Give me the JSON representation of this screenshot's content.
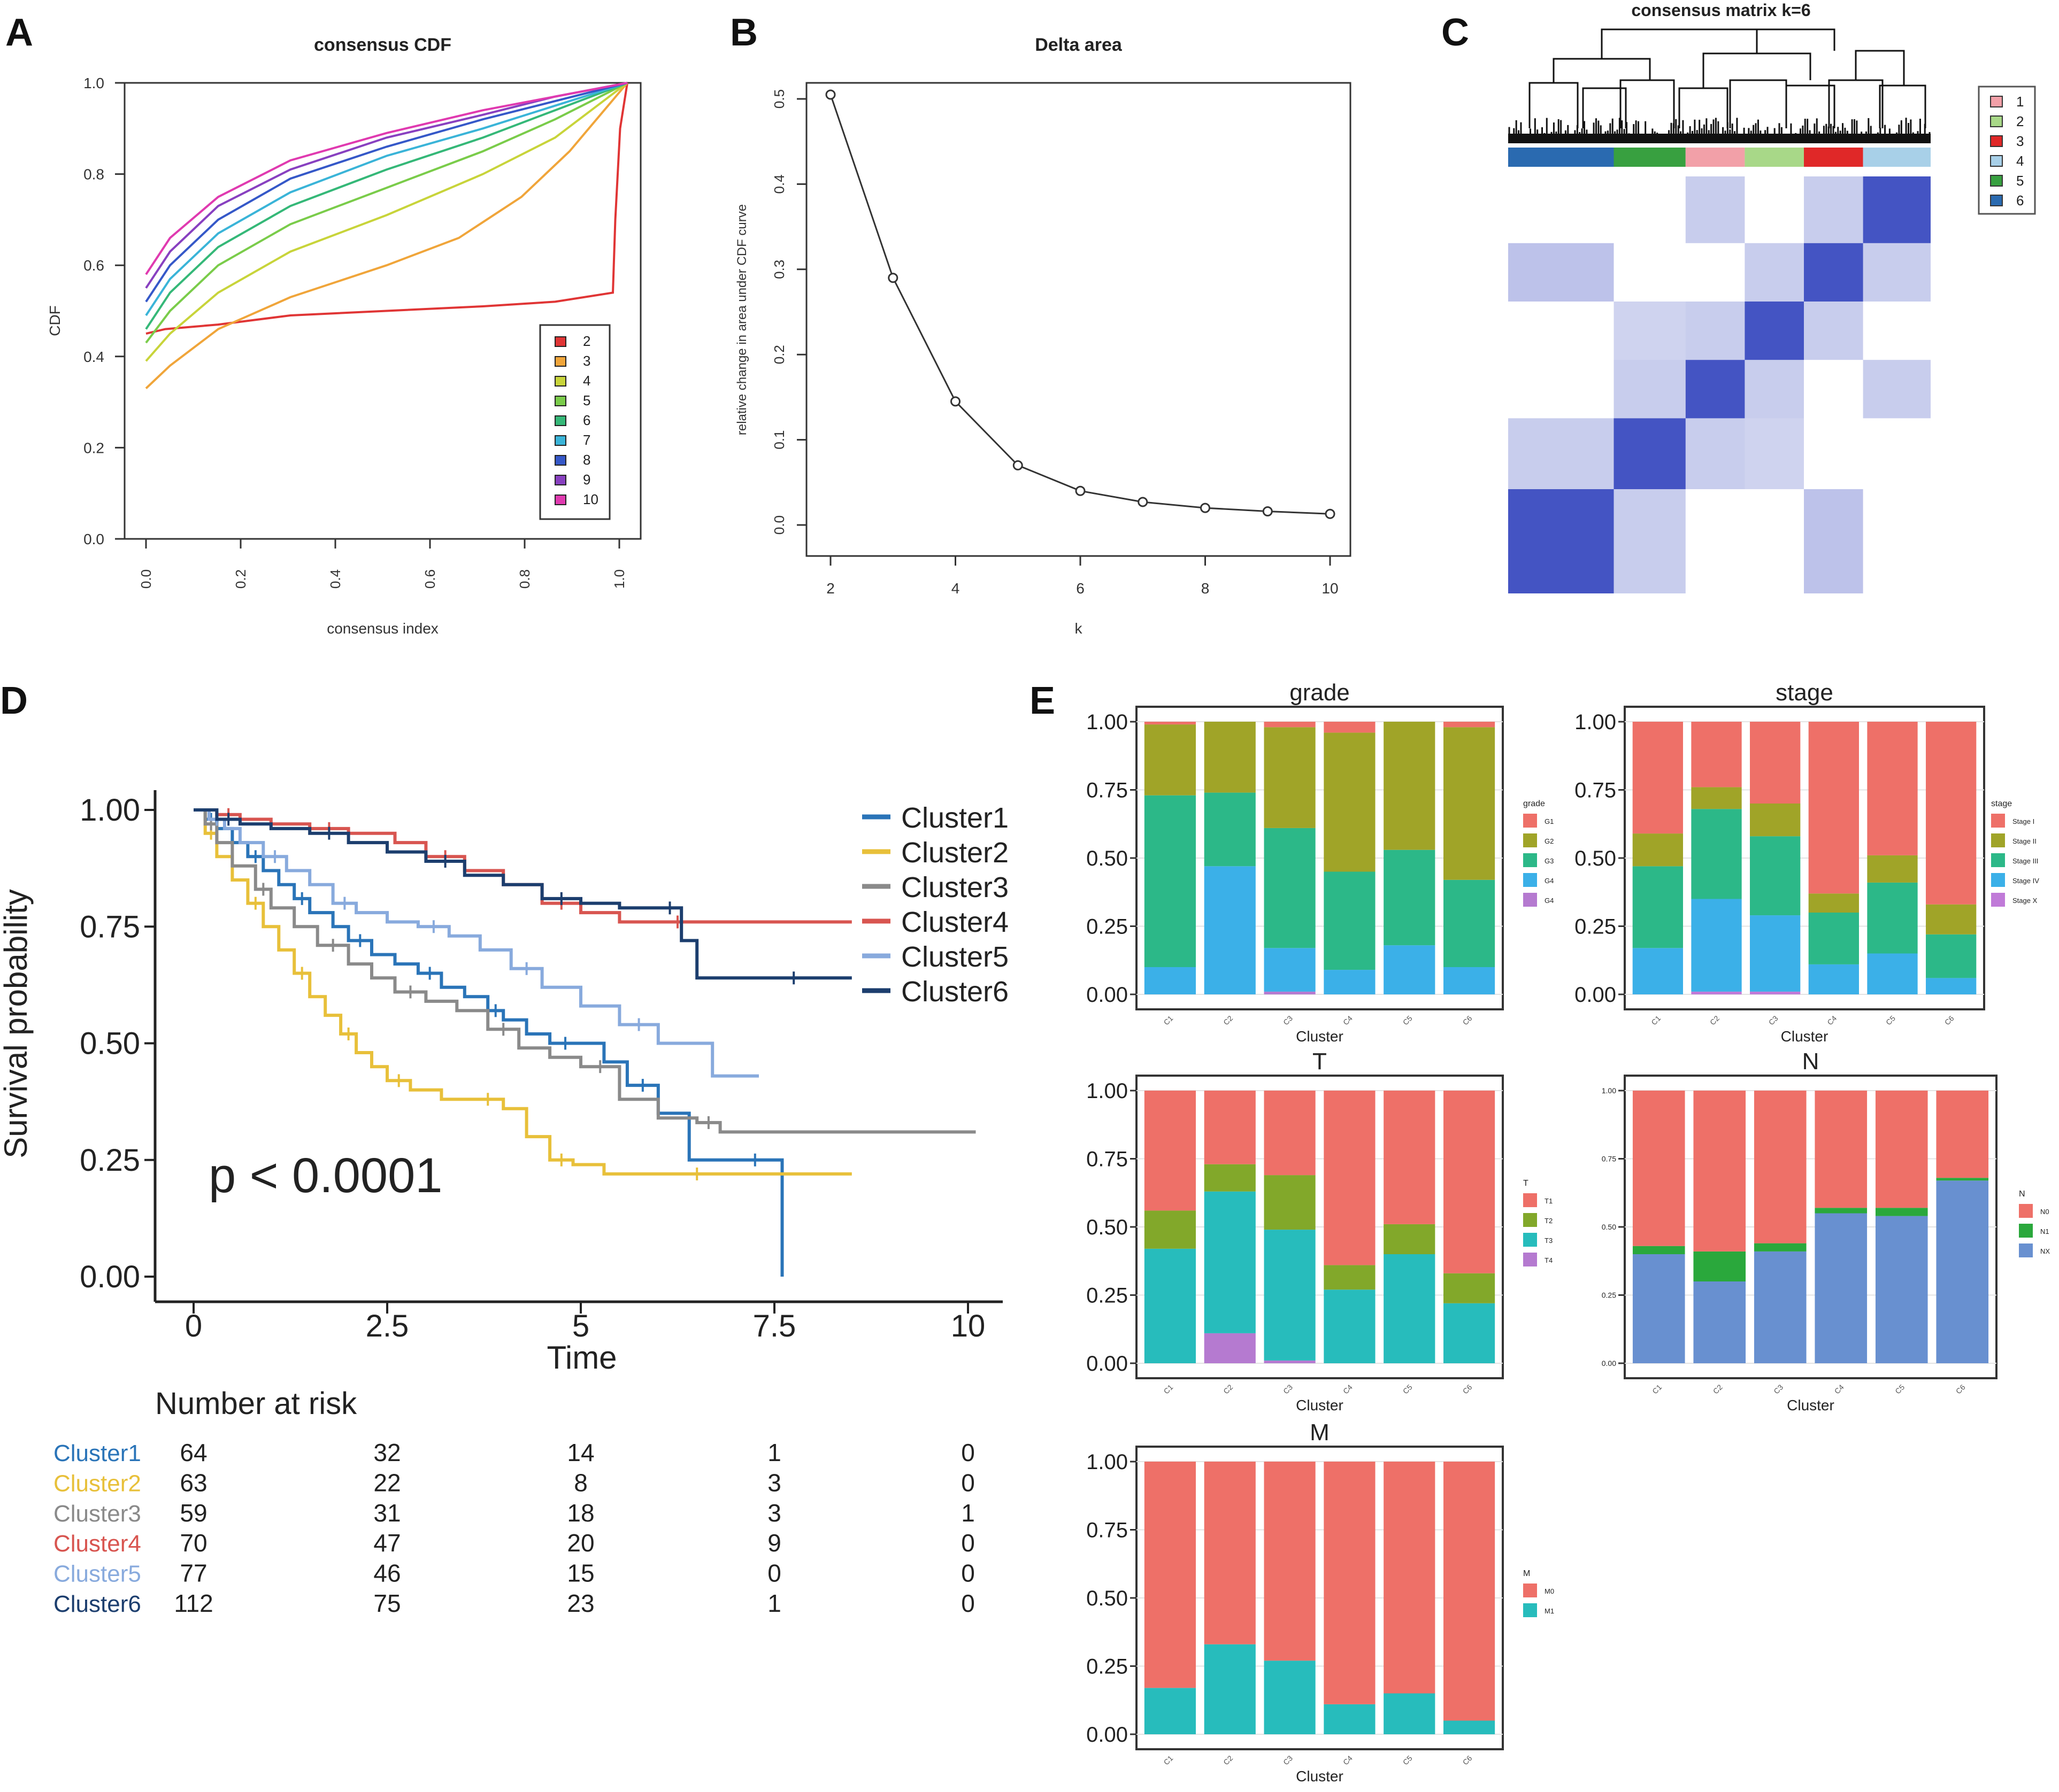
{
  "panel_letters": [
    "A",
    "B",
    "C",
    "D",
    "E"
  ],
  "chart_data": [
    {
      "id": "A",
      "type": "line",
      "title": "consensus CDF",
      "xlabel": "consensus index",
      "ylabel": "CDF",
      "xlim": [
        0,
        1
      ],
      "ylim": [
        0,
        1
      ],
      "xticks": [
        "0.0",
        "0.2",
        "0.4",
        "0.6",
        "0.8",
        "1.0"
      ],
      "yticks": [
        "0.0",
        "0.2",
        "0.4",
        "0.6",
        "0.8",
        "1.0"
      ],
      "legend_position": "bottom-right",
      "series": [
        {
          "name": "2",
          "color": "#e03535",
          "x": [
            0,
            0.04,
            0.15,
            0.3,
            0.5,
            0.7,
            0.85,
            0.97,
            0.975,
            0.985,
            1.0
          ],
          "y": [
            0.45,
            0.46,
            0.47,
            0.49,
            0.5,
            0.51,
            0.52,
            0.54,
            0.7,
            0.9,
            1.0
          ]
        },
        {
          "name": "3",
          "color": "#f0a53a",
          "x": [
            0,
            0.05,
            0.15,
            0.3,
            0.5,
            0.65,
            0.78,
            0.88,
            1.0
          ],
          "y": [
            0.33,
            0.38,
            0.46,
            0.53,
            0.6,
            0.66,
            0.75,
            0.85,
            1.0
          ]
        },
        {
          "name": "4",
          "color": "#c8d43a",
          "x": [
            0,
            0.05,
            0.15,
            0.3,
            0.5,
            0.7,
            0.85,
            1.0
          ],
          "y": [
            0.39,
            0.45,
            0.54,
            0.63,
            0.71,
            0.8,
            0.88,
            1.0
          ]
        },
        {
          "name": "5",
          "color": "#7acc4a",
          "x": [
            0,
            0.05,
            0.15,
            0.3,
            0.5,
            0.7,
            0.85,
            1.0
          ],
          "y": [
            0.43,
            0.5,
            0.6,
            0.69,
            0.77,
            0.85,
            0.92,
            1.0
          ]
        },
        {
          "name": "6",
          "color": "#35b878",
          "x": [
            0,
            0.05,
            0.15,
            0.3,
            0.5,
            0.7,
            0.85,
            1.0
          ],
          "y": [
            0.46,
            0.54,
            0.64,
            0.73,
            0.81,
            0.88,
            0.94,
            1.0
          ]
        },
        {
          "name": "7",
          "color": "#3ab4d8",
          "x": [
            0,
            0.05,
            0.15,
            0.3,
            0.5,
            0.7,
            0.85,
            1.0
          ],
          "y": [
            0.49,
            0.57,
            0.67,
            0.76,
            0.84,
            0.9,
            0.95,
            1.0
          ]
        },
        {
          "name": "8",
          "color": "#3558c8",
          "x": [
            0,
            0.05,
            0.15,
            0.3,
            0.5,
            0.7,
            0.85,
            1.0
          ],
          "y": [
            0.52,
            0.6,
            0.7,
            0.79,
            0.86,
            0.92,
            0.96,
            1.0
          ]
        },
        {
          "name": "9",
          "color": "#8840c0",
          "x": [
            0,
            0.05,
            0.15,
            0.3,
            0.5,
            0.7,
            0.85,
            1.0
          ],
          "y": [
            0.55,
            0.63,
            0.73,
            0.81,
            0.88,
            0.93,
            0.97,
            1.0
          ]
        },
        {
          "name": "10",
          "color": "#e03ab0",
          "x": [
            0,
            0.05,
            0.15,
            0.3,
            0.5,
            0.7,
            0.85,
            1.0
          ],
          "y": [
            0.58,
            0.66,
            0.75,
            0.83,
            0.89,
            0.94,
            0.97,
            1.0
          ]
        }
      ]
    },
    {
      "id": "B",
      "type": "line",
      "title": "Delta area",
      "xlabel": "k",
      "ylabel": "relative change in area under CDF curve",
      "xlim": [
        2,
        10
      ],
      "ylim": [
        0,
        0.5
      ],
      "xticks": [
        "2",
        "4",
        "6",
        "8",
        "10"
      ],
      "yticks": [
        "0.0",
        "0.1",
        "0.2",
        "0.3",
        "0.4",
        "0.5"
      ],
      "x": [
        2,
        3,
        4,
        5,
        6,
        7,
        8,
        9,
        10
      ],
      "values": [
        0.505,
        0.29,
        0.145,
        0.07,
        0.04,
        0.027,
        0.02,
        0.016,
        0.013
      ]
    },
    {
      "id": "C",
      "type": "heatmap",
      "title": "consensus matrix k=6",
      "legend": [
        {
          "label": "1",
          "color": "#f2a0a8"
        },
        {
          "label": "2",
          "color": "#a8d888"
        },
        {
          "label": "3",
          "color": "#e02828"
        },
        {
          "label": "4",
          "color": "#a8d0e8"
        },
        {
          "label": "5",
          "color": "#38a040"
        },
        {
          "label": "6",
          "color": "#2a6ab0"
        }
      ],
      "cluster_order": [
        "6",
        "5",
        "1",
        "2",
        "3",
        "4"
      ],
      "cluster_size_fractions": [
        0.25,
        0.17,
        0.14,
        0.14,
        0.14,
        0.16
      ]
    },
    {
      "id": "D",
      "type": "line",
      "xlabel": "Time",
      "ylabel": "Survival probability",
      "xlim": [
        0,
        10.5
      ],
      "ylim": [
        0,
        1
      ],
      "xticks": [
        "0",
        "2.5",
        "5",
        "7.5",
        "10"
      ],
      "yticks": [
        "0.00",
        "0.25",
        "0.50",
        "0.75",
        "1.00"
      ],
      "annotation": "p < 0.0001",
      "risk_table_title": "Number at risk",
      "risk_times": [
        0,
        2.5,
        5,
        7.5,
        10
      ],
      "series": [
        {
          "name": "Cluster1",
          "color": "#2a74b8",
          "risk": [
            64,
            32,
            14,
            1,
            0
          ],
          "x": [
            0,
            0.15,
            0.3,
            0.5,
            0.7,
            0.9,
            1.1,
            1.3,
            1.5,
            1.8,
            2.0,
            2.3,
            2.6,
            2.9,
            3.2,
            3.5,
            3.8,
            4.0,
            4.3,
            4.6,
            5.0,
            5.3,
            5.6,
            6.0,
            6.4,
            7.0,
            7.5,
            7.6
          ],
          "y": [
            1.0,
            0.98,
            0.96,
            0.93,
            0.9,
            0.87,
            0.84,
            0.81,
            0.78,
            0.75,
            0.72,
            0.69,
            0.67,
            0.65,
            0.62,
            0.6,
            0.57,
            0.55,
            0.52,
            0.5,
            0.5,
            0.46,
            0.41,
            0.35,
            0.25,
            0.25,
            0.25,
            0.0
          ]
        },
        {
          "name": "Cluster2",
          "color": "#e8c03a",
          "risk": [
            63,
            22,
            8,
            3,
            0
          ],
          "x": [
            0,
            0.15,
            0.3,
            0.5,
            0.7,
            0.9,
            1.1,
            1.3,
            1.5,
            1.7,
            1.9,
            2.1,
            2.3,
            2.5,
            2.8,
            3.2,
            3.6,
            4.0,
            4.3,
            4.6,
            4.9,
            5.3,
            6.0,
            7.0,
            8.5
          ],
          "y": [
            1.0,
            0.95,
            0.9,
            0.85,
            0.8,
            0.75,
            0.7,
            0.65,
            0.6,
            0.56,
            0.52,
            0.48,
            0.45,
            0.42,
            0.4,
            0.38,
            0.38,
            0.36,
            0.3,
            0.25,
            0.24,
            0.22,
            0.22,
            0.22,
            0.22
          ]
        },
        {
          "name": "Cluster3",
          "color": "#8a8a8a",
          "risk": [
            59,
            31,
            18,
            3,
            1
          ],
          "x": [
            0,
            0.15,
            0.3,
            0.5,
            0.8,
            1.0,
            1.3,
            1.6,
            2.0,
            2.3,
            2.6,
            3.0,
            3.4,
            3.8,
            4.2,
            4.6,
            5.0,
            5.5,
            6.0,
            6.5,
            6.8,
            10.1
          ],
          "y": [
            1.0,
            0.97,
            0.93,
            0.88,
            0.83,
            0.79,
            0.75,
            0.71,
            0.67,
            0.64,
            0.61,
            0.59,
            0.57,
            0.53,
            0.49,
            0.47,
            0.45,
            0.38,
            0.34,
            0.33,
            0.31,
            0.31
          ]
        },
        {
          "name": "Cluster4",
          "color": "#d85550",
          "risk": [
            70,
            47,
            20,
            9,
            0
          ],
          "x": [
            0,
            0.3,
            0.6,
            1.0,
            1.5,
            2.0,
            2.6,
            3.0,
            3.5,
            4.0,
            4.5,
            5.0,
            5.5,
            6.0,
            6.5,
            7.5,
            8.5
          ],
          "y": [
            1.0,
            0.99,
            0.98,
            0.97,
            0.96,
            0.95,
            0.93,
            0.9,
            0.87,
            0.84,
            0.8,
            0.78,
            0.76,
            0.76,
            0.76,
            0.76,
            0.76
          ]
        },
        {
          "name": "Cluster5",
          "color": "#88aadd",
          "risk": [
            77,
            46,
            15,
            0,
            0
          ],
          "x": [
            0,
            0.2,
            0.4,
            0.6,
            0.9,
            1.2,
            1.5,
            1.8,
            2.1,
            2.5,
            2.9,
            3.3,
            3.7,
            4.1,
            4.5,
            5.0,
            5.5,
            6.0,
            6.7,
            7.3
          ],
          "y": [
            1.0,
            0.98,
            0.96,
            0.93,
            0.9,
            0.87,
            0.84,
            0.8,
            0.78,
            0.76,
            0.75,
            0.73,
            0.7,
            0.66,
            0.62,
            0.58,
            0.54,
            0.5,
            0.43,
            0.43
          ]
        },
        {
          "name": "Cluster6",
          "color": "#1c3e6e",
          "risk": [
            112,
            75,
            23,
            1,
            0
          ],
          "x": [
            0,
            0.3,
            0.6,
            1.0,
            1.5,
            2.0,
            2.5,
            3.0,
            3.5,
            4.0,
            4.5,
            5.0,
            5.5,
            6.0,
            6.3,
            6.5,
            7.0,
            8.5
          ],
          "y": [
            1.0,
            0.98,
            0.97,
            0.96,
            0.95,
            0.93,
            0.91,
            0.89,
            0.86,
            0.84,
            0.81,
            0.8,
            0.79,
            0.79,
            0.72,
            0.64,
            0.64,
            0.64
          ]
        }
      ]
    },
    {
      "id": "E-grade",
      "type": "bar",
      "stacked": true,
      "title": "grade",
      "xlabel": "Cluster",
      "ylabel": "",
      "ylim": [
        0,
        1
      ],
      "yticks": [
        "0.00",
        "0.25",
        "0.50",
        "0.75",
        "1.00"
      ],
      "categories": [
        "C1",
        "C2",
        "C3",
        "C4",
        "C5",
        "C6"
      ],
      "legend_title": "grade",
      "series": [
        {
          "name": "G4",
          "color": "#b57ad0",
          "values": [
            0,
            0,
            0.01,
            0,
            0,
            0
          ]
        },
        {
          "name": "G4",
          "color": "#3bb0e8",
          "values": [
            0.1,
            0.47,
            0.16,
            0.09,
            0.18,
            0.1
          ]
        },
        {
          "name": "G3",
          "color": "#2cb888",
          "values": [
            0.63,
            0.27,
            0.44,
            0.36,
            0.35,
            0.32
          ]
        },
        {
          "name": "G2",
          "color": "#a0a428",
          "values": [
            0.26,
            0.26,
            0.37,
            0.51,
            0.47,
            0.56
          ]
        },
        {
          "name": "G1",
          "color": "#ee7068",
          "values": [
            0.01,
            0,
            0.02,
            0.04,
            0,
            0.02
          ]
        }
      ]
    },
    {
      "id": "E-stage",
      "type": "bar",
      "stacked": true,
      "title": "stage",
      "xlabel": "Cluster",
      "ylabel": "",
      "ylim": [
        0,
        1
      ],
      "yticks": [
        "0.00",
        "0.25",
        "0.50",
        "0.75",
        "1.00"
      ],
      "categories": [
        "C1",
        "C2",
        "C3",
        "C4",
        "C5",
        "C6"
      ],
      "legend_title": "stage",
      "series": [
        {
          "name": "Stage X",
          "color": "#c07ad8",
          "values": [
            0,
            0.01,
            0.01,
            0,
            0,
            0
          ]
        },
        {
          "name": "Stage IV",
          "color": "#3bb0e8",
          "values": [
            0.17,
            0.34,
            0.28,
            0.11,
            0.15,
            0.06
          ]
        },
        {
          "name": "Stage III",
          "color": "#2cb888",
          "values": [
            0.3,
            0.33,
            0.29,
            0.19,
            0.26,
            0.16
          ]
        },
        {
          "name": "Stage II",
          "color": "#a0a428",
          "values": [
            0.12,
            0.08,
            0.12,
            0.07,
            0.1,
            0.11
          ]
        },
        {
          "name": "Stage I",
          "color": "#ee7068",
          "values": [
            0.41,
            0.24,
            0.3,
            0.63,
            0.49,
            0.67
          ]
        }
      ]
    },
    {
      "id": "E-T",
      "type": "bar",
      "stacked": true,
      "title": "T",
      "xlabel": "Cluster",
      "ylabel": "",
      "ylim": [
        0,
        1
      ],
      "yticks": [
        "0.00",
        "0.25",
        "0.50",
        "0.75",
        "1.00"
      ],
      "categories": [
        "C1",
        "C2",
        "C3",
        "C4",
        "C5",
        "C6"
      ],
      "legend_title": "T",
      "series": [
        {
          "name": "T4",
          "color": "#b57ad0",
          "values": [
            0,
            0.11,
            0.01,
            0,
            0,
            0
          ]
        },
        {
          "name": "T3",
          "color": "#27bcbc",
          "values": [
            0.42,
            0.52,
            0.48,
            0.27,
            0.4,
            0.22
          ]
        },
        {
          "name": "T2",
          "color": "#82a82a",
          "values": [
            0.14,
            0.1,
            0.2,
            0.09,
            0.11,
            0.11
          ]
        },
        {
          "name": "T1",
          "color": "#ee7068",
          "values": [
            0.44,
            0.27,
            0.31,
            0.64,
            0.49,
            0.67
          ]
        }
      ]
    },
    {
      "id": "E-N",
      "type": "bar",
      "stacked": true,
      "title": "N",
      "xlabel": "Cluster",
      "ylabel": "",
      "ylim": [
        0,
        1
      ],
      "yticks": [
        "0.00",
        "0.25",
        "0.50",
        "0.75",
        "1.00"
      ],
      "categories": [
        "C1",
        "C2",
        "C3",
        "C4",
        "C5",
        "C6"
      ],
      "legend_title": "N",
      "series": [
        {
          "name": "NX",
          "color": "#6890d0",
          "values": [
            0.4,
            0.3,
            0.41,
            0.55,
            0.54,
            0.67
          ]
        },
        {
          "name": "N1",
          "color": "#2aa83c",
          "values": [
            0.03,
            0.11,
            0.03,
            0.02,
            0.03,
            0.01
          ]
        },
        {
          "name": "N0",
          "color": "#ee7068",
          "values": [
            0.57,
            0.59,
            0.56,
            0.43,
            0.43,
            0.32
          ]
        }
      ]
    },
    {
      "id": "E-M",
      "type": "bar",
      "stacked": true,
      "title": "M",
      "xlabel": "Cluster",
      "ylabel": "",
      "ylim": [
        0,
        1
      ],
      "yticks": [
        "0.00",
        "0.25",
        "0.50",
        "0.75",
        "1.00"
      ],
      "categories": [
        "C1",
        "C2",
        "C3",
        "C4",
        "C5",
        "C6"
      ],
      "legend_title": "M",
      "series": [
        {
          "name": "M1",
          "color": "#27bcbc",
          "values": [
            0.17,
            0.33,
            0.27,
            0.11,
            0.15,
            0.05
          ]
        },
        {
          "name": "M0",
          "color": "#ee7068",
          "values": [
            0.83,
            0.67,
            0.73,
            0.89,
            0.85,
            0.95
          ]
        }
      ]
    }
  ]
}
